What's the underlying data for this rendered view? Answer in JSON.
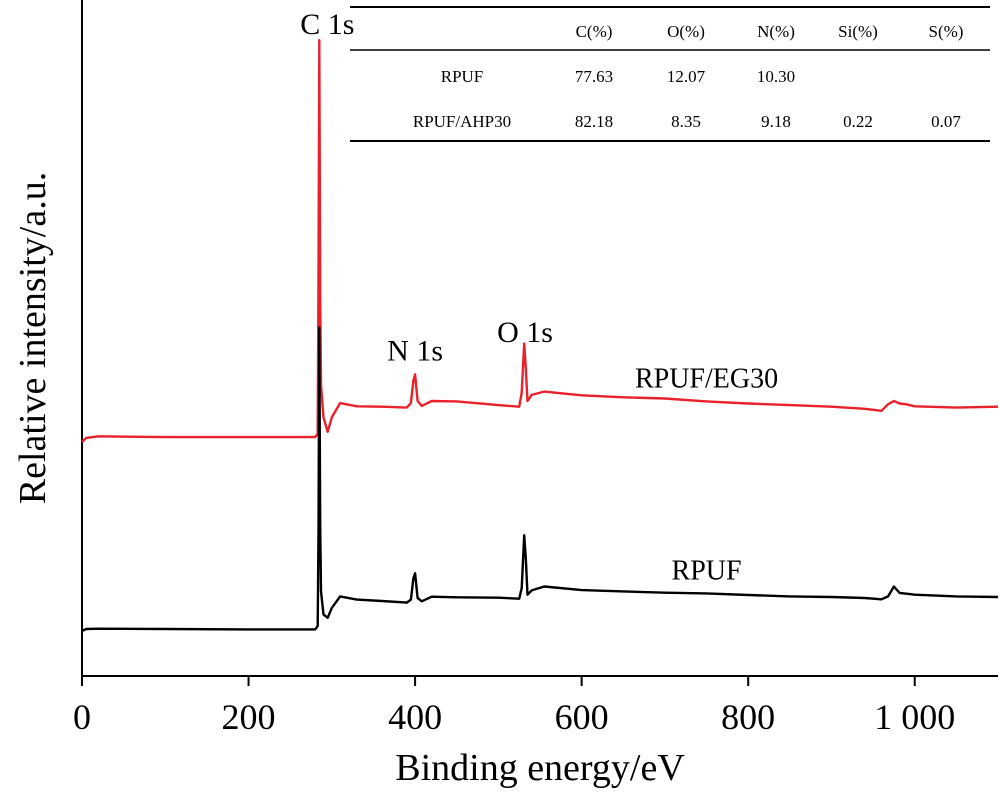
{
  "chart_data": {
    "type": "line",
    "xlabel": "Binding energy/eV",
    "ylabel": "Relative intensity/a.u.",
    "xlim": [
      0,
      1100
    ],
    "y_units": "arbitrary",
    "x_ticks": [
      {
        "value": 0,
        "label": "0"
      },
      {
        "value": 200,
        "label": "200"
      },
      {
        "value": 400,
        "label": "400"
      },
      {
        "value": 600,
        "label": "600"
      },
      {
        "value": 800,
        "label": "800"
      },
      {
        "value": 1000,
        "label": "1 000"
      }
    ],
    "y_ticks": "none",
    "grid": false,
    "series": [
      {
        "name": "RPUF/EG30",
        "color": "#e8212b",
        "x": [
          0,
          5,
          20,
          100,
          200,
          280,
          283,
          284,
          285,
          286,
          287,
          290,
          295,
          300,
          310,
          330,
          360,
          390,
          395,
          398,
          400,
          403,
          408,
          420,
          450,
          500,
          525,
          528,
          531,
          533,
          535,
          540,
          555,
          600,
          650,
          700,
          750,
          800,
          850,
          900,
          940,
          960,
          968,
          975,
          982,
          990,
          1000,
          1050,
          1100
        ],
        "y": [
          0,
          1,
          1.4,
          1.2,
          1.2,
          1.2,
          2,
          40,
          98,
          36,
          14,
          6,
          2.5,
          6,
          9.5,
          8.7,
          8.6,
          8.4,
          9.5,
          15,
          16.5,
          10,
          8.8,
          10,
          9.9,
          9,
          8.6,
          12,
          24,
          18,
          10,
          11.5,
          12.3,
          11.4,
          10.9,
          10.6,
          9.9,
          9.4,
          9,
          8.6,
          8.1,
          7.6,
          9.2,
          10,
          9.4,
          9.2,
          8.7,
          8.4,
          8.6
        ]
      },
      {
        "name": "RPUF",
        "color": "#000000",
        "x": [
          0,
          5,
          20,
          100,
          200,
          280,
          283,
          284,
          285,
          286,
          287,
          290,
          295,
          300,
          310,
          330,
          360,
          390,
          395,
          398,
          400,
          403,
          408,
          420,
          450,
          500,
          525,
          528,
          531,
          533,
          535,
          540,
          555,
          600,
          650,
          700,
          750,
          800,
          850,
          900,
          940,
          960,
          968,
          975,
          982,
          990,
          1000,
          1050,
          1100
        ],
        "y": [
          0,
          0.6,
          0.7,
          0.6,
          0.5,
          0.5,
          1.5,
          30,
          92,
          32,
          12,
          5,
          4,
          7,
          10.5,
          9.5,
          9.1,
          8.6,
          9.5,
          16,
          17.5,
          10,
          9,
          10.4,
          10.2,
          10.1,
          9.8,
          13,
          29,
          22,
          11,
          12.3,
          13.5,
          12.4,
          12,
          11.6,
          11.4,
          10.9,
          10.5,
          10.3,
          10,
          9.6,
          10.5,
          13.5,
          11.5,
          11.3,
          11,
          10.5,
          10.3
        ]
      }
    ],
    "peak_annotations": [
      {
        "text": "C 1s",
        "x": 285
      },
      {
        "text": "N 1s",
        "x": 400
      },
      {
        "text": "O 1s",
        "x": 532
      }
    ],
    "series_annotations": [
      {
        "text": "RPUF/EG30",
        "series": 0,
        "x": 750
      },
      {
        "text": "RPUF",
        "series": 1,
        "x": 750
      }
    ],
    "inset_table": {
      "columns": [
        "",
        "C(%)",
        "O(%)",
        "N(%)",
        "Si(%)",
        "S(%)"
      ],
      "rows": [
        [
          "RPUF",
          "77.63",
          "12.07",
          "10.30",
          "",
          ""
        ],
        [
          "RPUF/AHP30",
          "82.18",
          "8.35",
          "9.18",
          "0.22",
          "0.07"
        ]
      ]
    }
  }
}
